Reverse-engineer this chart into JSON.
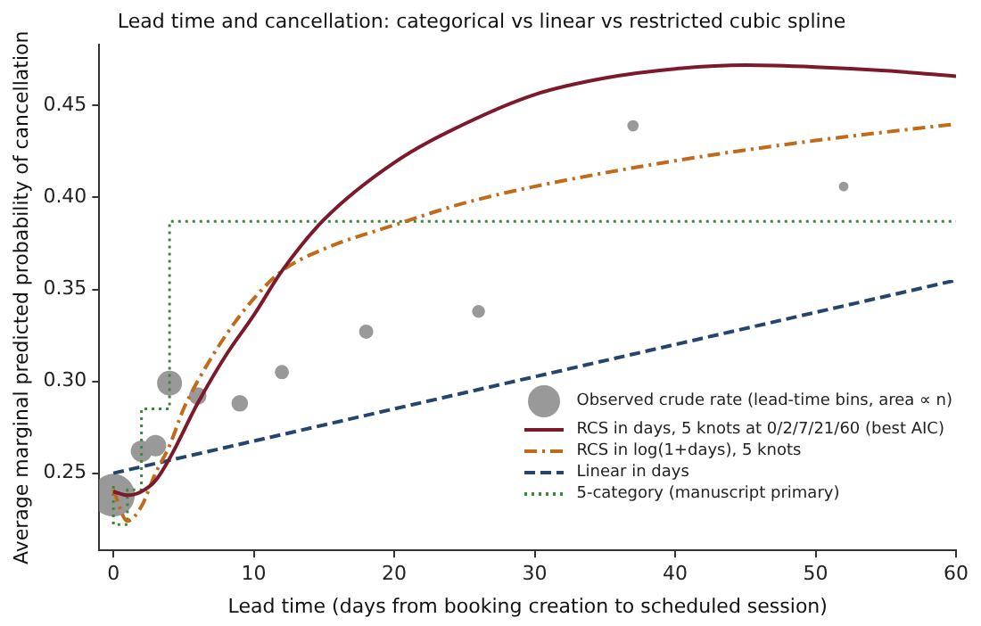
{
  "chart_data": {
    "type": "line",
    "title": "Lead time and cancellation: categorical vs linear vs restricted cubic spline",
    "xlabel": "Lead time (days from booking creation to scheduled session)",
    "ylabel": "Average marginal predicted probability of cancellation",
    "xlim": [
      -1,
      60
    ],
    "xticks": [
      0,
      10,
      20,
      30,
      40,
      50,
      60
    ],
    "ylim": [
      0.208,
      0.483
    ],
    "yticks": [
      {
        "value": 0.25,
        "label": "0.25"
      },
      {
        "value": 0.3,
        "label": "0.30"
      },
      {
        "value": 0.35,
        "label": "0.35"
      },
      {
        "value": 0.4,
        "label": "0.40"
      },
      {
        "value": 0.45,
        "label": "0.45"
      }
    ],
    "grid": false,
    "legend": "bottom right",
    "series": [
      {
        "type": "bubble",
        "name": "Observed crude rate (lead-time bins, area ∝ n)",
        "color": "#999999",
        "x": [
          0,
          2,
          3,
          4,
          6,
          9,
          12,
          18,
          26,
          37,
          52
        ],
        "values": [
          0.238,
          0.262,
          0.265,
          0.299,
          0.292,
          0.288,
          0.305,
          0.327,
          0.338,
          0.439,
          0.406
        ],
        "sizes": [
          1,
          0.25,
          0.25,
          0.34,
          0.17,
          0.15,
          0.11,
          0.11,
          0.09,
          0.07,
          0.05
        ]
      },
      {
        "name": "RCS in days, 5 knots at 0/2/7/21/60 (best AIC)",
        "color": "#7b1a2a",
        "line_style": "solid",
        "x": [
          0,
          1,
          2,
          3,
          4,
          6,
          8,
          10,
          12,
          15,
          20,
          25,
          30,
          35,
          40,
          45,
          50,
          55,
          60
        ],
        "values": [
          0.24,
          0.238,
          0.24,
          0.246,
          0.258,
          0.288,
          0.314,
          0.336,
          0.36,
          0.388,
          0.419,
          0.44,
          0.456,
          0.465,
          0.47,
          0.472,
          0.471,
          0.469,
          0.466
        ]
      },
      {
        "name": "RCS in log(1+days), 5 knots",
        "color": "#c06a1a",
        "line_style": "dashdot",
        "x": [
          0,
          1,
          2,
          3,
          4,
          5,
          6,
          8,
          10,
          12,
          15,
          20,
          25,
          30,
          40,
          50,
          60
        ],
        "values": [
          0.241,
          0.224,
          0.232,
          0.25,
          0.265,
          0.285,
          0.3,
          0.325,
          0.345,
          0.36,
          0.372,
          0.385,
          0.397,
          0.406,
          0.42,
          0.431,
          0.44
        ]
      },
      {
        "name": "Linear in days",
        "color": "#24456e",
        "line_style": "dashed",
        "x": [
          0,
          60
        ],
        "values": [
          0.25,
          0.355
        ]
      },
      {
        "type": "step",
        "name": "5-category (manuscript primary)",
        "color": "#3a8a3a",
        "line_style": "dotted",
        "x": [
          0,
          1,
          2,
          4,
          8,
          60
        ],
        "values": [
          0.243,
          0.222,
          0.241,
          0.285,
          0.387,
          0.387
        ]
      }
    ]
  }
}
